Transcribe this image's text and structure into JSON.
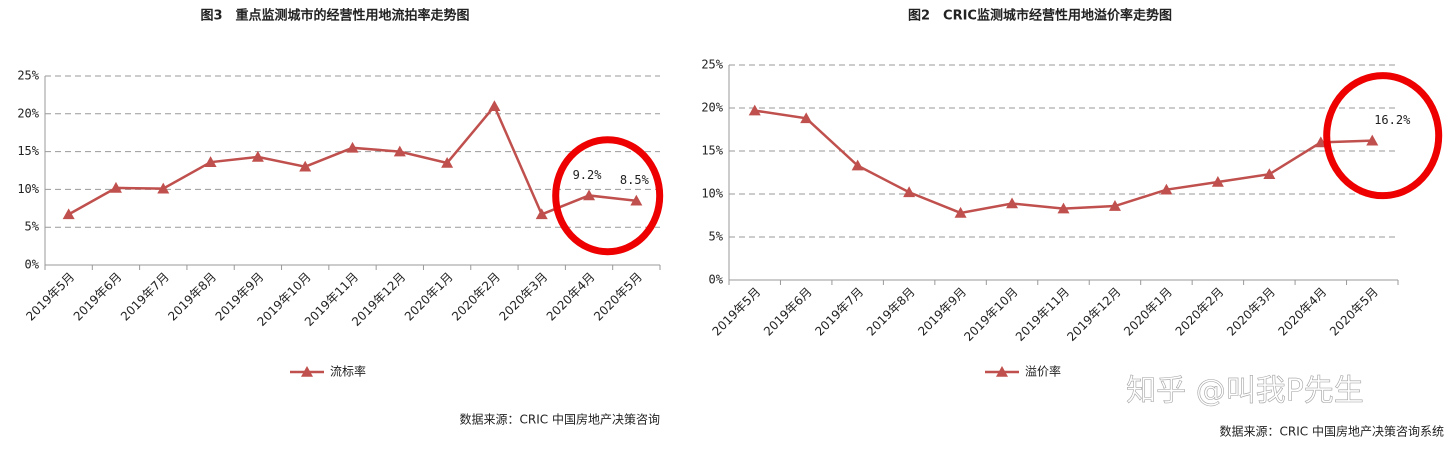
{
  "chart_data": [
    {
      "type": "line",
      "title": "图3　重点监测城市的经营性用地流拍率走势图",
      "categories": [
        "2019年5月",
        "2019年6月",
        "2019年7月",
        "2019年8月",
        "2019年9月",
        "2019年10月",
        "2019年11月",
        "2019年12月",
        "2020年1月",
        "2020年2月",
        "2020年3月",
        "2020年4月",
        "2020年5月"
      ],
      "series": [
        {
          "name": "流标率",
          "color": "#c0504d",
          "values": [
            6.7,
            10.2,
            10.1,
            13.6,
            14.3,
            13.0,
            15.5,
            15.0,
            13.5,
            21.0,
            6.7,
            9.2,
            8.5
          ],
          "value_labels": [
            null,
            null,
            null,
            null,
            null,
            null,
            null,
            null,
            null,
            null,
            null,
            "9.2%",
            "8.5%"
          ]
        }
      ],
      "ylim": [
        0,
        25
      ],
      "yticks": [
        {
          "value": 0,
          "label": "0%"
        },
        {
          "value": 5,
          "label": "5%"
        },
        {
          "value": 10,
          "label": "10%"
        },
        {
          "value": 15,
          "label": "15%"
        },
        {
          "value": 20,
          "label": "20%"
        },
        {
          "value": 25,
          "label": "25%"
        }
      ],
      "grid": true,
      "legend": "bottom",
      "source": "数据来源：CRIC 中国房地产决策咨询"
    },
    {
      "type": "line",
      "title": "图2　CRIC监测城市经营性用地溢价率走势图",
      "categories": [
        "2019年5月",
        "2019年6月",
        "2019年7月",
        "2019年8月",
        "2019年9月",
        "2019年10月",
        "2019年11月",
        "2019年12月",
        "2020年1月",
        "2020年2月",
        "2020年3月",
        "2020年4月",
        "2020年5月"
      ],
      "series": [
        {
          "name": "溢价率",
          "color": "#c0504d",
          "values": [
            19.7,
            18.8,
            13.3,
            10.2,
            7.8,
            8.9,
            8.3,
            8.6,
            10.5,
            11.4,
            12.3,
            16.0,
            16.2
          ],
          "value_labels": [
            null,
            null,
            null,
            null,
            null,
            null,
            null,
            null,
            null,
            null,
            null,
            null,
            "16.2%"
          ]
        }
      ],
      "ylim": [
        0,
        25
      ],
      "yticks": [
        {
          "value": 0,
          "label": "0%"
        },
        {
          "value": 5,
          "label": "5%"
        },
        {
          "value": 10,
          "label": "10%"
        },
        {
          "value": 15,
          "label": "15%"
        },
        {
          "value": 20,
          "label": "20%"
        },
        {
          "value": 25,
          "label": "25%"
        }
      ],
      "grid": true,
      "legend": "bottom",
      "source": "数据来源：CRIC 中国房地产决策咨询系统",
      "watermark": "知乎 @叫我P先生"
    }
  ]
}
